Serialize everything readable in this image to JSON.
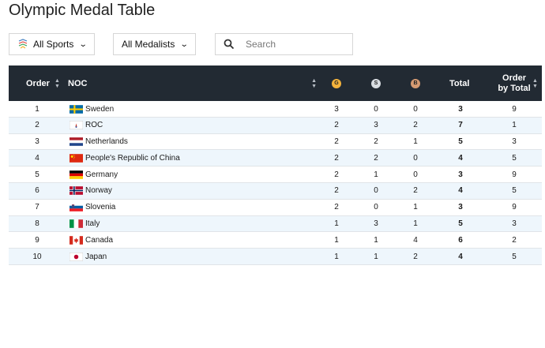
{
  "title": "Olympic Medal Table",
  "filters": {
    "sports_label": "All Sports",
    "medalists_label": "All Medalists",
    "search_placeholder": "Search"
  },
  "table": {
    "headers": {
      "order": "Order",
      "noc": "NOC",
      "gold": "G",
      "silver": "S",
      "bronze": "B",
      "total": "Total",
      "order_by_total": "Order by Total"
    },
    "rows": [
      {
        "order": "1",
        "noc": "Sweden",
        "flag": "se-flag",
        "gold": "3",
        "silver": "0",
        "bronze": "0",
        "total": "3",
        "order_by_total": "9"
      },
      {
        "order": "2",
        "noc": "ROC",
        "flag": "roc-flag",
        "gold": "2",
        "silver": "3",
        "bronze": "2",
        "total": "7",
        "order_by_total": "1"
      },
      {
        "order": "3",
        "noc": "Netherlands",
        "flag": "nl-flag",
        "gold": "2",
        "silver": "2",
        "bronze": "1",
        "total": "5",
        "order_by_total": "3"
      },
      {
        "order": "4",
        "noc": "People's Republic of China",
        "flag": "cn-flag",
        "gold": "2",
        "silver": "2",
        "bronze": "0",
        "total": "4",
        "order_by_total": "5"
      },
      {
        "order": "5",
        "noc": "Germany",
        "flag": "de-flag",
        "gold": "2",
        "silver": "1",
        "bronze": "0",
        "total": "3",
        "order_by_total": "9"
      },
      {
        "order": "6",
        "noc": "Norway",
        "flag": "no-flag",
        "gold": "2",
        "silver": "0",
        "bronze": "2",
        "total": "4",
        "order_by_total": "5"
      },
      {
        "order": "7",
        "noc": "Slovenia",
        "flag": "si-flag",
        "gold": "2",
        "silver": "0",
        "bronze": "1",
        "total": "3",
        "order_by_total": "9"
      },
      {
        "order": "8",
        "noc": "Italy",
        "flag": "it-flag",
        "gold": "1",
        "silver": "3",
        "bronze": "1",
        "total": "5",
        "order_by_total": "3"
      },
      {
        "order": "9",
        "noc": "Canada",
        "flag": "ca-flag",
        "gold": "1",
        "silver": "1",
        "bronze": "4",
        "total": "6",
        "order_by_total": "2"
      },
      {
        "order": "10",
        "noc": "Japan",
        "flag": "jp-flag",
        "gold": "1",
        "silver": "1",
        "bronze": "2",
        "total": "4",
        "order_by_total": "5"
      }
    ]
  },
  "colors": {
    "header_bg": "#222a33",
    "row_alt_bg": "#eef6fc",
    "gold": "#f3b23c",
    "silver": "#d9dde2",
    "bronze": "#d59a72"
  }
}
